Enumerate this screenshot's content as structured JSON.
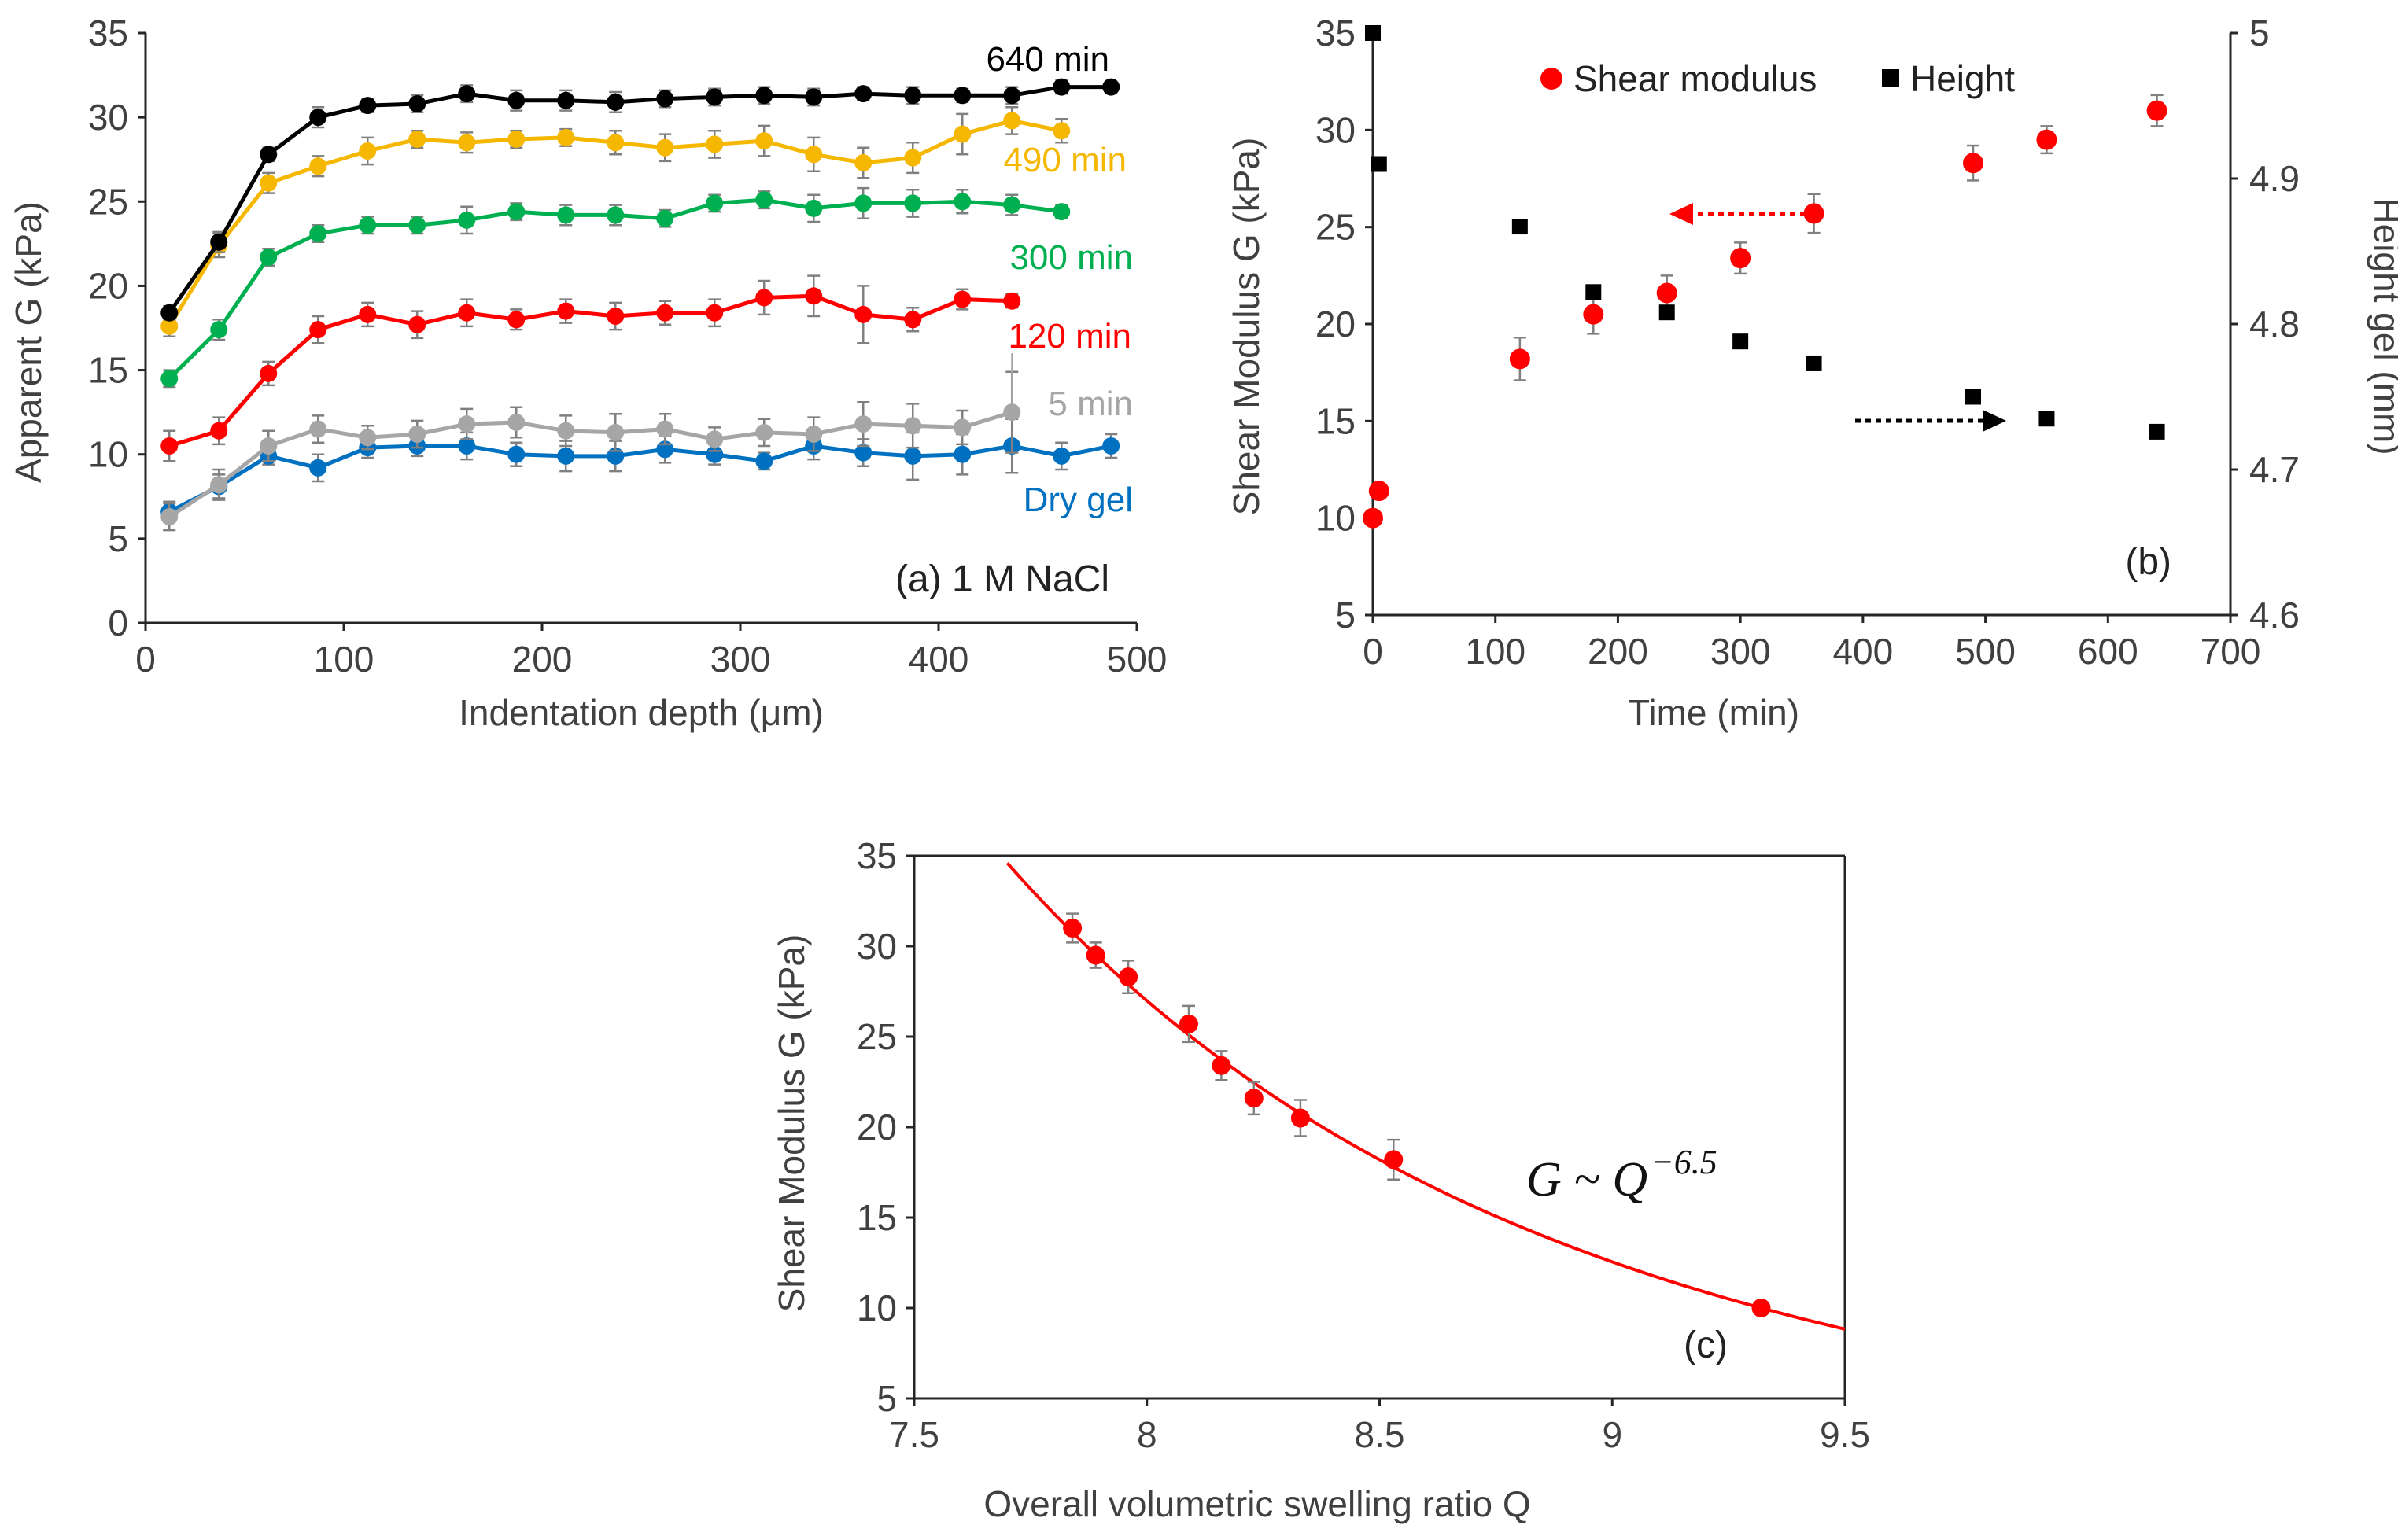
{
  "chart_data": [
    {
      "id": "a",
      "type": "line",
      "panel_label": "(a) 1 M NaCl",
      "xlabel": "Indentation depth (μm)",
      "ylabel": "Apparent G (kPa)",
      "xlim": [
        0,
        500
      ],
      "ylim": [
        0,
        35
      ],
      "xticks": [
        0,
        100,
        200,
        300,
        400,
        500
      ],
      "yticks": [
        0,
        5,
        10,
        15,
        20,
        25,
        30,
        35
      ],
      "grid": false,
      "series": [
        {
          "name": "640 min",
          "color": "#000000",
          "x": [
            12,
            37,
            62,
            87,
            112,
            137,
            162,
            187,
            212,
            237,
            262,
            287,
            312,
            337,
            362,
            387,
            412,
            437,
            462,
            487
          ],
          "values": [
            18.4,
            22.6,
            27.8,
            30.0,
            30.7,
            30.8,
            31.4,
            31.0,
            31.0,
            30.9,
            31.1,
            31.2,
            31.3,
            31.2,
            31.4,
            31.3,
            31.3,
            31.3,
            31.8,
            31.8
          ],
          "errors": [
            0.4,
            0.6,
            0.4,
            0.6,
            0.4,
            0.5,
            0.5,
            0.6,
            0.6,
            0.6,
            0.5,
            0.5,
            0.5,
            0.5,
            0.4,
            0.5,
            0.4,
            0.5,
            0.4,
            0.3
          ]
        },
        {
          "name": "490 min",
          "color": "#f5b700",
          "x": [
            12,
            37,
            62,
            87,
            112,
            137,
            162,
            187,
            212,
            237,
            262,
            287,
            312,
            337,
            362,
            387,
            412,
            437,
            462
          ],
          "values": [
            17.6,
            22.4,
            26.1,
            27.1,
            28.0,
            28.7,
            28.5,
            28.7,
            28.8,
            28.5,
            28.2,
            28.4,
            28.6,
            27.8,
            27.3,
            27.6,
            29.0,
            29.8,
            29.2
          ],
          "errors": [
            0.6,
            0.7,
            0.6,
            0.6,
            0.8,
            0.5,
            0.6,
            0.5,
            0.5,
            0.7,
            0.8,
            0.8,
            0.9,
            1.0,
            0.9,
            0.9,
            1.2,
            0.8,
            0.7
          ]
        },
        {
          "name": "300 min",
          "color": "#00b050",
          "x": [
            12,
            37,
            62,
            87,
            112,
            137,
            162,
            187,
            212,
            237,
            262,
            287,
            312,
            337,
            362,
            387,
            412,
            437,
            462
          ],
          "values": [
            14.5,
            17.4,
            21.7,
            23.1,
            23.6,
            23.6,
            23.9,
            24.4,
            24.2,
            24.2,
            24.0,
            24.9,
            25.1,
            24.6,
            24.9,
            24.9,
            25.0,
            24.8,
            24.4
          ],
          "errors": [
            0.5,
            0.6,
            0.5,
            0.5,
            0.5,
            0.5,
            0.8,
            0.5,
            0.6,
            0.6,
            0.5,
            0.5,
            0.5,
            0.8,
            0.9,
            0.8,
            0.7,
            0.6,
            0.4
          ]
        },
        {
          "name": "120 min",
          "color": "#ff0000",
          "x": [
            12,
            37,
            62,
            87,
            112,
            137,
            162,
            187,
            212,
            237,
            262,
            287,
            312,
            337,
            362,
            387,
            412,
            437
          ],
          "values": [
            10.5,
            11.4,
            14.8,
            17.4,
            18.3,
            17.7,
            18.4,
            18.0,
            18.5,
            18.2,
            18.4,
            18.4,
            19.3,
            19.4,
            18.3,
            18.0,
            19.2,
            19.1
          ],
          "errors": [
            0.9,
            0.8,
            0.7,
            0.8,
            0.7,
            0.8,
            0.8,
            0.6,
            0.7,
            0.8,
            0.7,
            0.8,
            1.0,
            1.2,
            1.7,
            0.7,
            0.6,
            0.4
          ]
        },
        {
          "name": "5 min",
          "color": "#a6a6a6",
          "x": [
            12,
            37,
            62,
            87,
            112,
            137,
            162,
            187,
            212,
            237,
            262,
            287,
            312,
            337,
            362,
            387,
            412,
            437
          ],
          "values": [
            6.3,
            8.2,
            10.5,
            11.5,
            11.0,
            11.2,
            11.8,
            11.9,
            11.4,
            11.3,
            11.5,
            10.9,
            11.3,
            11.2,
            11.8,
            11.7,
            11.6,
            12.5
          ],
          "errors": [
            0.8,
            0.9,
            0.9,
            0.8,
            0.7,
            0.8,
            0.9,
            0.9,
            0.9,
            1.1,
            0.9,
            0.7,
            0.8,
            1.0,
            1.3,
            1.3,
            1.0,
            2.4
          ]
        },
        {
          "name": "Dry gel",
          "color": "#0070c0",
          "x": [
            12,
            37,
            62,
            87,
            112,
            137,
            162,
            187,
            212,
            237,
            262,
            287,
            312,
            337,
            362,
            387,
            412,
            437,
            462,
            487
          ],
          "values": [
            6.6,
            8.1,
            9.9,
            9.2,
            10.4,
            10.5,
            10.5,
            10.0,
            9.9,
            9.9,
            10.3,
            10.0,
            9.6,
            10.5,
            10.1,
            9.9,
            10.0,
            10.5,
            9.9,
            10.5
          ],
          "errors": [
            0.6,
            0.7,
            0.5,
            0.8,
            0.6,
            0.6,
            0.8,
            0.7,
            0.9,
            0.9,
            0.8,
            0.6,
            0.5,
            0.8,
            0.8,
            1.4,
            1.2,
            1.6,
            0.8,
            0.7
          ]
        }
      ]
    },
    {
      "id": "b",
      "type": "scatter",
      "panel_label": "(b)",
      "xlabel": "Time (min)",
      "ylabel": "Shear Modulus G (kPa)",
      "y2label": "Height gel (mm)",
      "xlim": [
        0,
        700
      ],
      "ylim": [
        5,
        35
      ],
      "y2lim": [
        4.6,
        5.0
      ],
      "xticks": [
        0,
        100,
        200,
        300,
        400,
        500,
        600,
        700
      ],
      "yticks": [
        5,
        10,
        15,
        20,
        25,
        30,
        35
      ],
      "y2ticks": [
        4.6,
        4.7,
        4.8,
        4.9,
        5
      ],
      "y2ticklabels": [
        "4.6",
        "4.7",
        "4.8",
        "4.9",
        "5"
      ],
      "grid": false,
      "legend": [
        "Shear modulus",
        "Height"
      ],
      "series": [
        {
          "name": "Shear modulus",
          "color": "#ff0000",
          "axis": "left",
          "x": [
            0,
            5,
            120,
            180,
            240,
            300,
            360,
            490,
            550,
            640
          ],
          "values": [
            10.0,
            11.4,
            18.2,
            20.5,
            21.6,
            23.4,
            25.7,
            28.3,
            29.5,
            31.0
          ],
          "errors": [
            0.3,
            0.3,
            1.1,
            1.0,
            0.9,
            0.8,
            1.0,
            0.9,
            0.7,
            0.8
          ]
        },
        {
          "name": "Height",
          "color": "#000000",
          "axis": "right",
          "x": [
            0,
            5,
            120,
            180,
            240,
            300,
            360,
            490,
            550,
            640
          ],
          "values": [
            5.0,
            4.91,
            4.867,
            4.822,
            4.808,
            4.788,
            4.773,
            4.75,
            4.735,
            4.726
          ]
        }
      ]
    },
    {
      "id": "c",
      "type": "scatter",
      "panel_label": "(c)",
      "xlabel": "Overall volumetric swelling ratio Q",
      "ylabel": "Shear Modulus G (kPa)",
      "xlim": [
        7.5,
        9.5
      ],
      "ylim": [
        5,
        35
      ],
      "xticks": [
        7.5,
        8,
        8.5,
        9,
        9.5
      ],
      "yticks": [
        5,
        10,
        15,
        20,
        25,
        30,
        35
      ],
      "grid": false,
      "fit": {
        "label_base": "G ~ Q",
        "label_exp": "−6.5",
        "exponent": -6.5,
        "ref_x": 9.32,
        "ref_y": 10.0,
        "color": "#ff0000",
        "x_range": [
          7.6,
          9.5
        ]
      },
      "series": [
        {
          "name": "data",
          "color": "#ff0000",
          "x": [
            9.32,
            8.53,
            8.33,
            8.23,
            8.16,
            8.09,
            7.96,
            7.89,
            7.84
          ],
          "values": [
            10.0,
            18.2,
            20.5,
            21.6,
            23.4,
            25.7,
            28.3,
            29.5,
            31.0
          ],
          "errors": [
            0.2,
            1.1,
            1.0,
            0.9,
            0.8,
            1.0,
            0.9,
            0.7,
            0.8
          ]
        }
      ]
    }
  ]
}
